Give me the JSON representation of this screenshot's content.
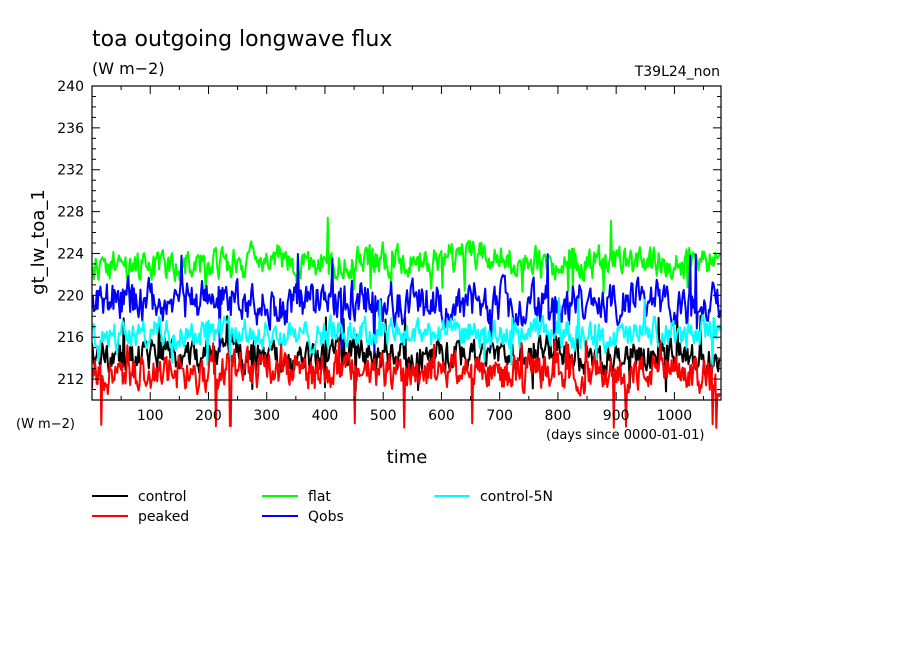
{
  "chart_data": {
    "type": "line",
    "title": "toa outgoing longwave flux",
    "units": "(W m−2)",
    "run_label": "T39L24_non",
    "ylabel": "gt_lw_toa_1",
    "xlabel": "time",
    "x_units": "(days since 0000-01-01)",
    "left_units": "(W m−2)",
    "xlim": [
      0,
      1080
    ],
    "ylim": [
      210,
      240
    ],
    "x_ticks": [
      100,
      200,
      300,
      400,
      500,
      600,
      700,
      800,
      900,
      1000
    ],
    "y_ticks": [
      212,
      216,
      220,
      224,
      228,
      232,
      236,
      240
    ],
    "grid": false,
    "legend_position": "bottom",
    "series": [
      {
        "name": "control",
        "color": "#000000",
        "mean": 214.2,
        "min": 210.8,
        "max": 218.2,
        "x": [
          0,
          60,
          120,
          180,
          240,
          300,
          360,
          420,
          480,
          540,
          600,
          660,
          720,
          780,
          840,
          900,
          960,
          1020,
          1080
        ],
        "values": [
          214.5,
          214.0,
          214.5,
          214.2,
          214.8,
          214.0,
          213.8,
          214.6,
          214.4,
          213.9,
          214.5,
          214.2,
          214.0,
          214.7,
          214.1,
          213.8,
          214.3,
          214.0,
          213.5
        ]
      },
      {
        "name": "peaked",
        "color": "#ff0000",
        "mean": 212.8,
        "min": 207.2,
        "max": 215.8,
        "x": [
          0,
          60,
          120,
          180,
          240,
          300,
          360,
          420,
          480,
          540,
          600,
          660,
          720,
          780,
          840,
          900,
          960,
          1020,
          1080
        ],
        "values": [
          212.5,
          212.2,
          212.8,
          212.5,
          213.2,
          212.6,
          212.4,
          213.0,
          212.5,
          212.7,
          213.1,
          212.6,
          212.4,
          213.0,
          212.5,
          212.3,
          212.7,
          212.4,
          212.2
        ]
      },
      {
        "name": "flat",
        "color": "#00ff00",
        "mean": 223.0,
        "min": 220.2,
        "max": 227.5,
        "x": [
          0,
          60,
          120,
          180,
          240,
          300,
          360,
          420,
          480,
          540,
          600,
          660,
          720,
          780,
          840,
          900,
          960,
          1020,
          1080
        ],
        "values": [
          222.6,
          222.8,
          222.6,
          223.2,
          223.0,
          223.4,
          223.1,
          223.0,
          223.6,
          223.2,
          223.3,
          224.0,
          223.3,
          223.1,
          223.0,
          223.2,
          223.0,
          223.1,
          223.4
        ]
      },
      {
        "name": "Qobs",
        "color": "#0000ff",
        "mean": 219.2,
        "min": 214.5,
        "max": 224.0,
        "x": [
          0,
          60,
          120,
          180,
          240,
          300,
          360,
          420,
          480,
          540,
          600,
          660,
          720,
          780,
          840,
          900,
          960,
          1020,
          1080
        ],
        "values": [
          219.0,
          219.6,
          219.4,
          219.3,
          219.6,
          219.0,
          219.2,
          219.8,
          219.4,
          219.2,
          219.3,
          219.6,
          219.1,
          219.0,
          219.4,
          219.2,
          219.6,
          219.0,
          219.3
        ]
      },
      {
        "name": "control-5N",
        "color": "#00ffff",
        "mean": 216.3,
        "min": 213.2,
        "max": 220.0,
        "x": [
          0,
          60,
          120,
          180,
          240,
          300,
          360,
          420,
          480,
          540,
          600,
          660,
          720,
          780,
          840,
          900,
          960,
          1020,
          1080
        ],
        "values": [
          216.2,
          216.0,
          216.5,
          216.3,
          216.6,
          216.2,
          216.0,
          216.6,
          216.4,
          216.2,
          216.5,
          216.3,
          216.1,
          216.6,
          216.2,
          216.0,
          216.4,
          216.2,
          216.6
        ]
      }
    ],
    "legend_columns": [
      [
        "control",
        "peaked"
      ],
      [
        "flat",
        "Qobs"
      ],
      [
        "control-5N"
      ]
    ]
  }
}
